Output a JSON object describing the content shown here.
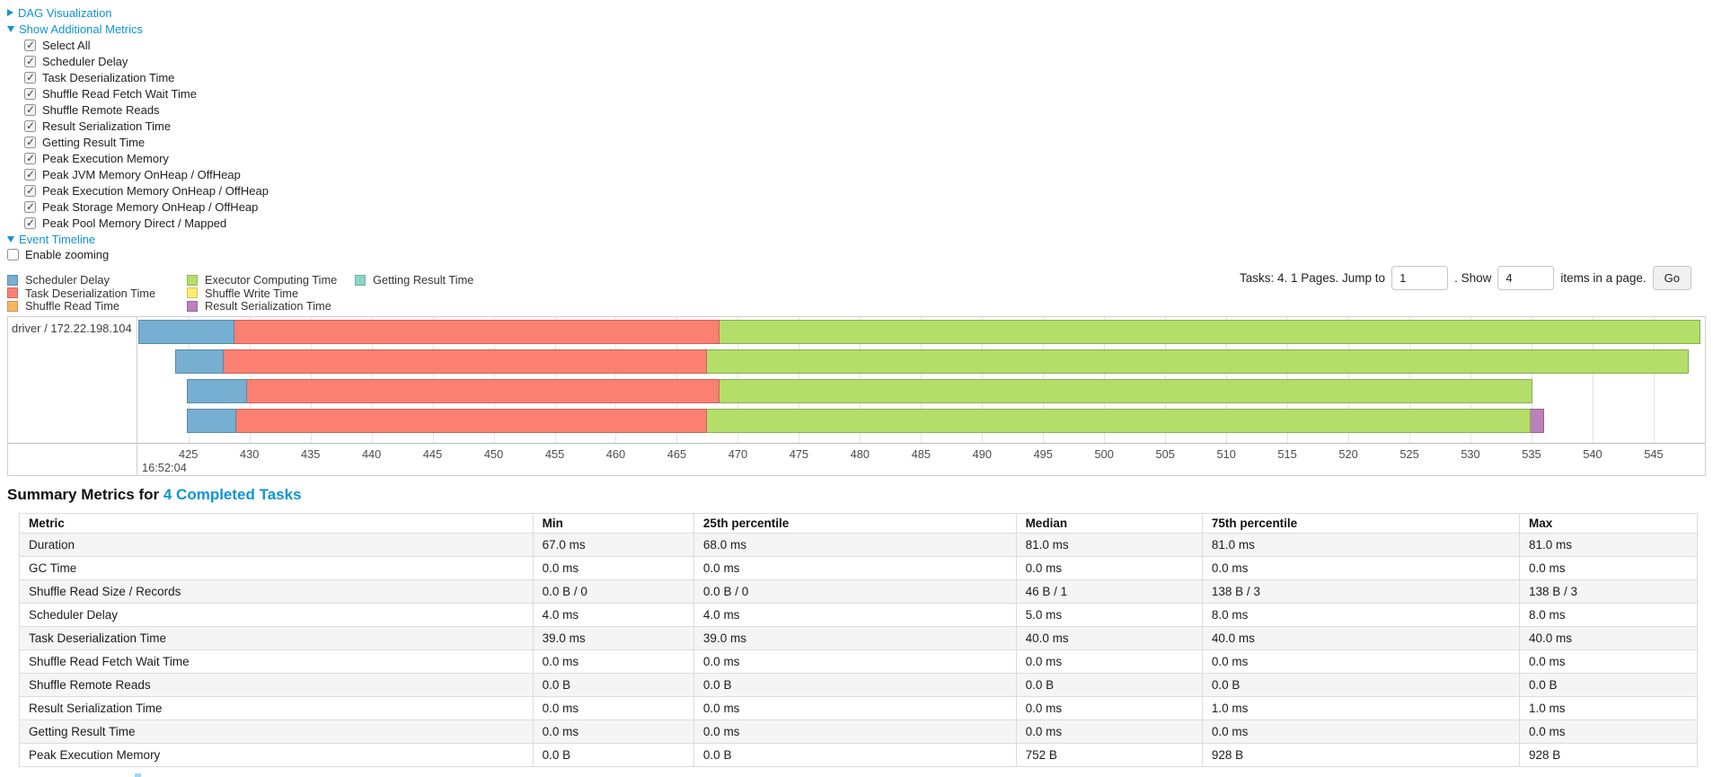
{
  "colors": {
    "link": "#0e94d2",
    "scheduler_delay": "#76AFD2",
    "task_deserialization": "#FB8072",
    "shuffle_read": "#FDB462",
    "executor_computing": "#B3DE69",
    "shuffle_write": "#FFED6F",
    "result_serialization": "#BC80BD",
    "getting_result": "#8DD3C7"
  },
  "controls": {
    "dag": {
      "label": "DAG Visualization",
      "expanded": false
    },
    "metrics_toggle": {
      "label": "Show Additional Metrics",
      "expanded": true
    },
    "checkboxes": [
      {
        "label": "Select All",
        "checked": true
      },
      {
        "label": "Scheduler Delay",
        "checked": true
      },
      {
        "label": "Task Deserialization Time",
        "checked": true
      },
      {
        "label": "Shuffle Read Fetch Wait Time",
        "checked": true
      },
      {
        "label": "Shuffle Remote Reads",
        "checked": true
      },
      {
        "label": "Result Serialization Time",
        "checked": true
      },
      {
        "label": "Getting Result Time",
        "checked": true
      },
      {
        "label": "Peak Execution Memory",
        "checked": true
      },
      {
        "label": "Peak JVM Memory OnHeap / OffHeap",
        "checked": true
      },
      {
        "label": "Peak Execution Memory OnHeap / OffHeap",
        "checked": true
      },
      {
        "label": "Peak Storage Memory OnHeap / OffHeap",
        "checked": true
      },
      {
        "label": "Peak Pool Memory Direct / Mapped",
        "checked": true
      }
    ],
    "event_timeline": {
      "label": "Event Timeline",
      "expanded": true
    },
    "enable_zooming": {
      "label": "Enable zooming",
      "checked": false
    }
  },
  "pagination": {
    "prefix": "Tasks: 4. 1 Pages. Jump to",
    "jump_value": "1",
    "between": ". Show",
    "show_value": "4",
    "suffix": "items in a page.",
    "go_label": "Go"
  },
  "phases": {
    "scheduler_delay": {
      "label": "Scheduler Delay"
    },
    "task_deserialization": {
      "label": "Task Deserialization Time"
    },
    "shuffle_read": {
      "label": "Shuffle Read Time"
    },
    "executor_computing": {
      "label": "Executor Computing Time"
    },
    "shuffle_write": {
      "label": "Shuffle Write Time"
    },
    "result_serialization": {
      "label": "Result Serialization Time"
    },
    "getting_result": {
      "label": "Getting Result Time"
    }
  },
  "legend_columns": [
    [
      "scheduler_delay",
      "task_deserialization",
      "shuffle_read"
    ],
    [
      "executor_computing",
      "shuffle_write",
      "result_serialization"
    ],
    [
      "getting_result"
    ]
  ],
  "chart_data": {
    "type": "timeline",
    "group_label": "driver / 172.22.198.104",
    "time_label": "16:52:04",
    "axis": {
      "min": 420.9,
      "max": 549.2,
      "tick_start": 425,
      "tick_end": 550,
      "tick_step": 5
    },
    "tasks": [
      {
        "name": "task-row-1",
        "segments": [
          {
            "phase": "scheduler_delay",
            "start": 420.9,
            "end": 428.8
          },
          {
            "phase": "task_deserialization",
            "start": 428.8,
            "end": 468.5
          },
          {
            "phase": "executor_computing",
            "start": 468.5,
            "end": 548.8
          }
        ]
      },
      {
        "name": "task-row-2",
        "segments": [
          {
            "phase": "scheduler_delay",
            "start": 423.9,
            "end": 427.9
          },
          {
            "phase": "task_deserialization",
            "start": 427.9,
            "end": 467.5
          },
          {
            "phase": "executor_computing",
            "start": 467.5,
            "end": 547.9
          }
        ]
      },
      {
        "name": "task-row-3",
        "segments": [
          {
            "phase": "scheduler_delay",
            "start": 424.9,
            "end": 429.8
          },
          {
            "phase": "task_deserialization",
            "start": 429.8,
            "end": 468.5
          },
          {
            "phase": "executor_computing",
            "start": 468.5,
            "end": 535.1
          }
        ]
      },
      {
        "name": "task-row-4",
        "segments": [
          {
            "phase": "scheduler_delay",
            "start": 424.9,
            "end": 428.9
          },
          {
            "phase": "task_deserialization",
            "start": 428.9,
            "end": 467.5
          },
          {
            "phase": "executor_computing",
            "start": 467.5,
            "end": 534.9
          },
          {
            "phase": "result_serialization",
            "start": 534.9,
            "end": 536.0
          }
        ]
      }
    ]
  },
  "summary": {
    "title_prefix": "Summary Metrics for",
    "title_link": "4 Completed Tasks",
    "table": {
      "headers": [
        "Metric",
        "Min",
        "25th percentile",
        "Median",
        "75th percentile",
        "Max"
      ],
      "col_widths": [
        "30.6%",
        "9.6%",
        "19.2%",
        "11.1%",
        "18.9%",
        "10.6%"
      ],
      "rows": [
        [
          "Duration",
          "67.0 ms",
          "68.0 ms",
          "81.0 ms",
          "81.0 ms",
          "81.0 ms"
        ],
        [
          "GC Time",
          "0.0 ms",
          "0.0 ms",
          "0.0 ms",
          "0.0 ms",
          "0.0 ms"
        ],
        [
          "Shuffle Read Size / Records",
          "0.0 B / 0",
          "0.0 B / 0",
          "46 B / 1",
          "138 B / 3",
          "138 B / 3"
        ],
        [
          "Scheduler Delay",
          "4.0 ms",
          "4.0 ms",
          "5.0 ms",
          "8.0 ms",
          "8.0 ms"
        ],
        [
          "Task Deserialization Time",
          "39.0 ms",
          "39.0 ms",
          "40.0 ms",
          "40.0 ms",
          "40.0 ms"
        ],
        [
          "Shuffle Read Fetch Wait Time",
          "0.0 ms",
          "0.0 ms",
          "0.0 ms",
          "0.0 ms",
          "0.0 ms"
        ],
        [
          "Shuffle Remote Reads",
          "0.0 B",
          "0.0 B",
          "0.0 B",
          "0.0 B",
          "0.0 B"
        ],
        [
          "Result Serialization Time",
          "0.0 ms",
          "0.0 ms",
          "0.0 ms",
          "1.0 ms",
          "1.0 ms"
        ],
        [
          "Getting Result Time",
          "0.0 ms",
          "0.0 ms",
          "0.0 ms",
          "0.0 ms",
          "0.0 ms"
        ],
        [
          "Peak Execution Memory",
          "0.0 B",
          "0.0 B",
          "752 B",
          "928 B",
          "928 B"
        ]
      ]
    }
  }
}
